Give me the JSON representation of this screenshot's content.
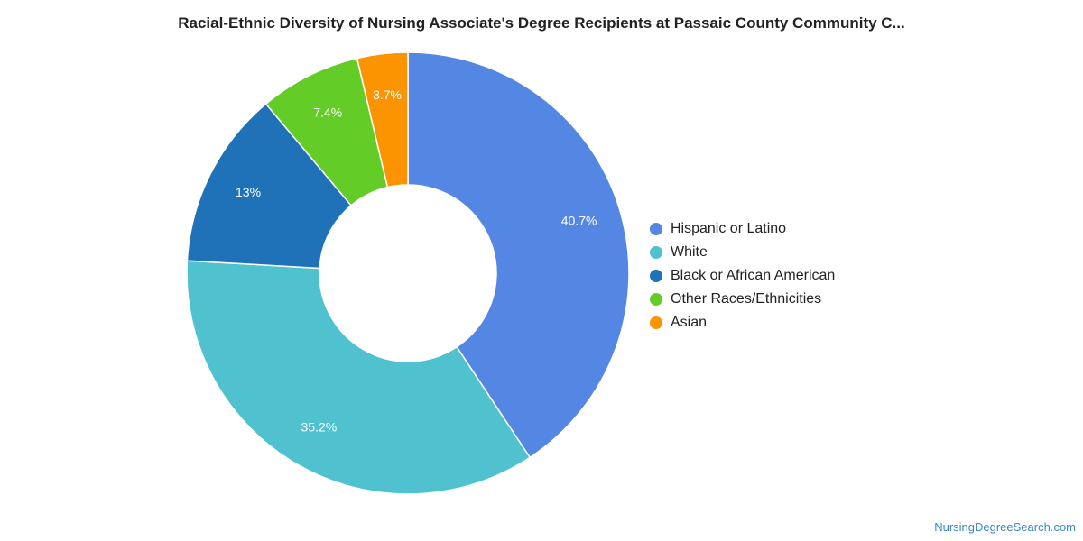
{
  "chart_data": {
    "type": "pie",
    "title": "Racial-Ethnic Diversity of Nursing Associate's Degree Recipients at Passaic County Community C...",
    "legend_position": "right",
    "donut": true,
    "categories": [
      "Hispanic or Latino",
      "White",
      "Black or African American",
      "Other Races/Ethnicities",
      "Asian"
    ],
    "values": [
      40.7,
      35.2,
      13,
      7.4,
      3.7
    ],
    "value_labels": [
      "40.7%",
      "35.2%",
      "13%",
      "7.4%",
      "3.7%"
    ],
    "colors": [
      "#5486e3",
      "#50c1cf",
      "#1f72b8",
      "#63cc27",
      "#fb9400"
    ]
  },
  "credit": "NursingDegreeSearch.com"
}
